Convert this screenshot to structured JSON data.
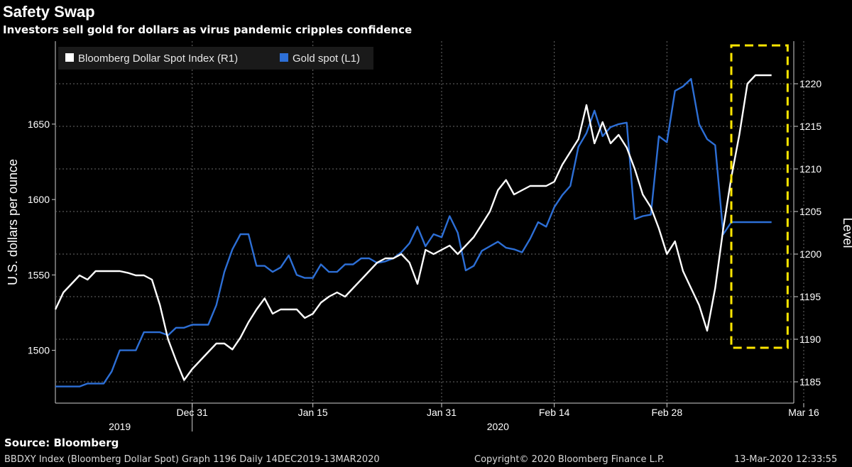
{
  "header": {
    "title": "Safety Swap",
    "subtitle": "Investors sell gold for dollars as virus pandemic cripples confidence"
  },
  "footer": {
    "source": "Source: Bloomberg",
    "graph_info": "BBDXY Index (Bloomberg Dollar Spot) Graph 1196  Daily 14DEC2019-13MAR2020",
    "copyright": "Copyright© 2020 Bloomberg Finance L.P.",
    "timestamp": "13-Mar-2020 12:33:55"
  },
  "colors": {
    "background": "#000000",
    "gold_line": "#2d6fd6",
    "dollar_line": "#ffffff",
    "highlight": "#ffe600",
    "grid": "#6a6a6a"
  },
  "chart_data": {
    "type": "line",
    "title": "Safety Swap",
    "ylabel_left": "U.S. dollars per ounce",
    "ylabel_right": "Level",
    "ylim_left": [
      1465,
      1705
    ],
    "ylim_right": [
      1182.5,
      1225
    ],
    "yticks_left": [
      1500,
      1550,
      1600,
      1650
    ],
    "yticks_right": [
      1185,
      1190,
      1195,
      1200,
      1205,
      1210,
      1215,
      1220
    ],
    "xrange_days": [
      0,
      90
    ],
    "xticks": [
      {
        "label": "Dec 31",
        "day": 17
      },
      {
        "label": "Jan 15",
        "day": 32
      },
      {
        "label": "Jan 31",
        "day": 48
      },
      {
        "label": "Feb 14",
        "day": 62
      },
      {
        "label": "Feb 28",
        "day": 76
      },
      {
        "label": "Mar 16",
        "day": 93
      }
    ],
    "year_labels": [
      {
        "label": "2019",
        "day": 8
      },
      {
        "label": "2020",
        "day": 55
      }
    ],
    "year_divider_day": 17,
    "legend": {
      "position": "top-left",
      "entries": [
        {
          "label": "Bloomberg Dollar Spot Index (R1)",
          "series": "dollar"
        },
        {
          "label": "Gold spot (L1)",
          "series": "gold"
        }
      ]
    },
    "highlight_box": {
      "day_start": 84,
      "day_end": 91,
      "right_min": 1189,
      "right_max": 1224.5
    },
    "series": [
      {
        "name": "Gold spot (L1)",
        "axis": "left",
        "days": [
          0,
          1,
          2,
          3,
          4,
          5,
          6,
          7,
          8,
          9,
          10,
          11,
          12,
          13,
          14,
          15,
          16,
          17,
          18,
          19,
          20,
          21,
          22,
          23,
          24,
          25,
          26,
          27,
          28,
          29,
          30,
          31,
          32,
          33,
          34,
          35,
          36,
          37,
          38,
          39,
          40,
          41,
          42,
          43,
          44,
          45,
          46,
          47,
          48,
          49,
          50,
          51,
          52,
          53,
          54,
          55,
          56,
          57,
          58,
          59,
          60,
          61,
          62,
          63,
          64,
          65,
          66,
          67,
          68,
          69,
          70,
          71,
          72,
          73,
          74,
          75,
          76,
          77,
          78,
          79,
          80,
          81,
          82,
          83,
          84,
          85,
          86,
          87,
          88,
          89
        ],
        "values": [
          1476,
          1476,
          1476,
          1476,
          1478,
          1478,
          1478,
          1486,
          1500,
          1500,
          1500,
          1512,
          1512,
          1512,
          1510,
          1515,
          1515,
          1517,
          1517,
          1517,
          1530,
          1552,
          1567,
          1577,
          1577,
          1556,
          1556,
          1552,
          1555,
          1563,
          1550,
          1548,
          1548,
          1557,
          1552,
          1552,
          1557,
          1557,
          1561,
          1561,
          1558,
          1559,
          1561,
          1565,
          1571,
          1582,
          1569,
          1577,
          1575,
          1589,
          1578,
          1553,
          1556,
          1566,
          1569,
          1572,
          1568,
          1567,
          1565,
          1574,
          1585,
          1582,
          1595,
          1603,
          1609,
          1635,
          1644,
          1659,
          1642,
          1648,
          1650,
          1651,
          1587,
          1589,
          1590,
          1642,
          1638,
          1672,
          1675,
          1680,
          1650,
          1640,
          1636,
          1577,
          1585,
          1585,
          1585,
          1585,
          1585,
          1585
        ]
      },
      {
        "name": "Bloomberg Dollar Spot Index (R1)",
        "axis": "right",
        "days": [
          0,
          1,
          2,
          3,
          4,
          5,
          6,
          7,
          8,
          9,
          10,
          11,
          12,
          13,
          14,
          15,
          16,
          17,
          18,
          19,
          20,
          21,
          22,
          23,
          24,
          25,
          26,
          27,
          28,
          29,
          30,
          31,
          32,
          33,
          34,
          35,
          36,
          37,
          38,
          39,
          40,
          41,
          42,
          43,
          44,
          45,
          46,
          47,
          48,
          49,
          50,
          51,
          52,
          53,
          54,
          55,
          56,
          57,
          58,
          59,
          60,
          61,
          62,
          63,
          64,
          65,
          66,
          67,
          68,
          69,
          70,
          71,
          72,
          73,
          74,
          75,
          76,
          77,
          78,
          79,
          80,
          81,
          82,
          83,
          84,
          85,
          86,
          87,
          88,
          89
        ],
        "values": [
          1193.5,
          1195.5,
          1196.5,
          1197.5,
          1197,
          1198,
          1198,
          1198,
          1198,
          1197.8,
          1197.5,
          1197.5,
          1197,
          1194,
          1190,
          1187.5,
          1185.2,
          1186.5,
          1187.5,
          1188.5,
          1189.5,
          1189.5,
          1188.8,
          1190.2,
          1192,
          1193.5,
          1194.8,
          1193,
          1193.5,
          1193.5,
          1193.5,
          1192.5,
          1193,
          1194.3,
          1195,
          1195.5,
          1195,
          1196,
          1197,
          1198,
          1199,
          1199.5,
          1199.5,
          1200,
          1199,
          1196.5,
          1200.5,
          1200,
          1200.5,
          1201,
          1200,
          1201,
          1202,
          1203.5,
          1205,
          1207.5,
          1208.7,
          1207,
          1207.5,
          1208,
          1208,
          1208,
          1208.5,
          1210.5,
          1212,
          1213.5,
          1217.5,
          1213,
          1215.5,
          1213,
          1214,
          1212.5,
          1210,
          1207,
          1205.5,
          1203,
          1200,
          1201.5,
          1198,
          1196,
          1194,
          1191,
          1196,
          1203,
          1209,
          1214,
          1220,
          1221,
          1221,
          1221
        ]
      }
    ]
  }
}
